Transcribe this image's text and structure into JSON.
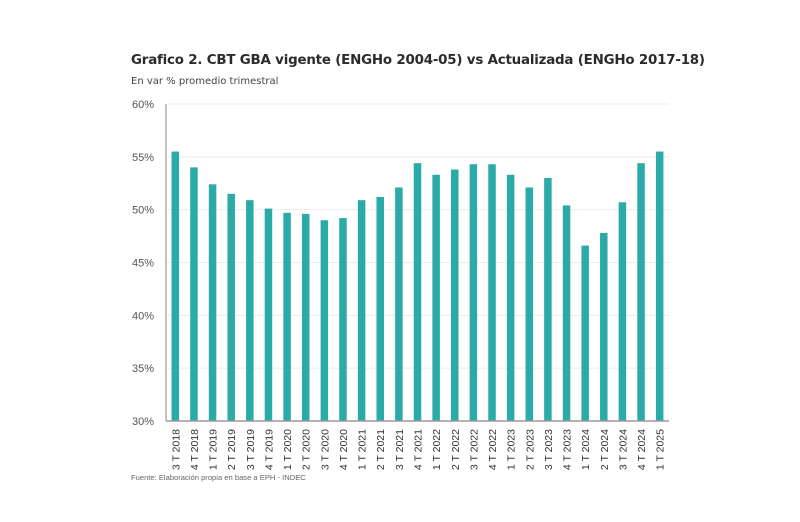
{
  "chart_data": {
    "type": "bar",
    "title": "Grafico 2. CBT GBA vigente (ENGHo 2004-05) vs Actualizada (ENGHo 2017-18)",
    "subtitle": "En var % promedio trimestral",
    "source": "Fuente: Elaboración propia en base a EPH - INDEC",
    "xlabel": "",
    "ylabel": "",
    "ylim": [
      30,
      60
    ],
    "yticks": [
      30,
      35,
      40,
      45,
      50,
      55,
      60
    ],
    "ytick_labels": [
      "30%",
      "35%",
      "40%",
      "45%",
      "50%",
      "55%",
      "60%"
    ],
    "grid": true,
    "legend": "none",
    "bar_color": "#2aaba8",
    "categories": [
      "3 T 2018",
      "4 T 2018",
      "1 T 2019",
      "2 T 2019",
      "3 T 2019",
      "4 T 2019",
      "1 T 2020",
      "2 T 2020",
      "3 T 2020",
      "4 T 2020",
      "1 T 2021",
      "2 T 2021",
      "3 T 2021",
      "4 T 2021",
      "1 T 2022",
      "2 T 2022",
      "3 T 2022",
      "4 T 2022",
      "1 T 2023",
      "2 T 2023",
      "3 T 2023",
      "4 T 2023",
      "1 T 2024",
      "2 T 2024",
      "3 T 2024",
      "4 T 2024",
      "1 T 2025"
    ],
    "values": [
      55.5,
      54.0,
      52.4,
      51.5,
      50.9,
      50.1,
      49.7,
      49.6,
      49.0,
      49.2,
      50.9,
      51.2,
      52.1,
      54.4,
      53.3,
      53.8,
      54.3,
      54.3,
      53.3,
      52.1,
      53.0,
      50.4,
      46.6,
      47.8,
      50.7,
      54.4,
      55.5
    ]
  }
}
